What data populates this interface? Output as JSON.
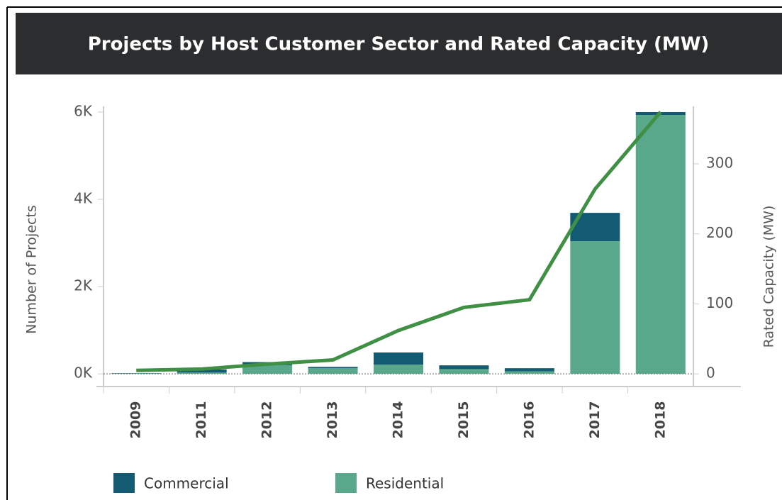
{
  "chart_data": {
    "type": "bar",
    "title": "Projects by Host Customer Sector and Rated Capacity (MW)",
    "categories": [
      "2009",
      "2011",
      "2012",
      "2013",
      "2014",
      "2015",
      "2016",
      "2017",
      "2018"
    ],
    "stacked": true,
    "series": [
      {
        "name": "Commercial",
        "color": "#135a73",
        "values": [
          10,
          70,
          70,
          30,
          280,
          85,
          70,
          650,
          65
        ]
      },
      {
        "name": "Residential",
        "color": "#5aa88c",
        "values": [
          5,
          30,
          200,
          130,
          210,
          110,
          60,
          3040,
          5935
        ]
      },
      {
        "type": "line",
        "axis": "y2",
        "color": "#3f8f45",
        "values": [
          5,
          7,
          14,
          20,
          62,
          95,
          106,
          264,
          374
        ]
      }
    ],
    "y_label": "Number of Projects",
    "y2_label": "Rated Capacity (MW)",
    "ylim": [
      -290,
      6130
    ],
    "yticks": [
      {
        "value": 0,
        "label": "0K"
      },
      {
        "value": 2000,
        "label": "2K"
      },
      {
        "value": 4000,
        "label": "4K"
      },
      {
        "value": 6000,
        "label": "6K"
      }
    ],
    "y2lim": [
      -18,
      382
    ],
    "y2ticks": [
      0,
      100,
      200,
      300
    ],
    "legend": "bottom"
  }
}
